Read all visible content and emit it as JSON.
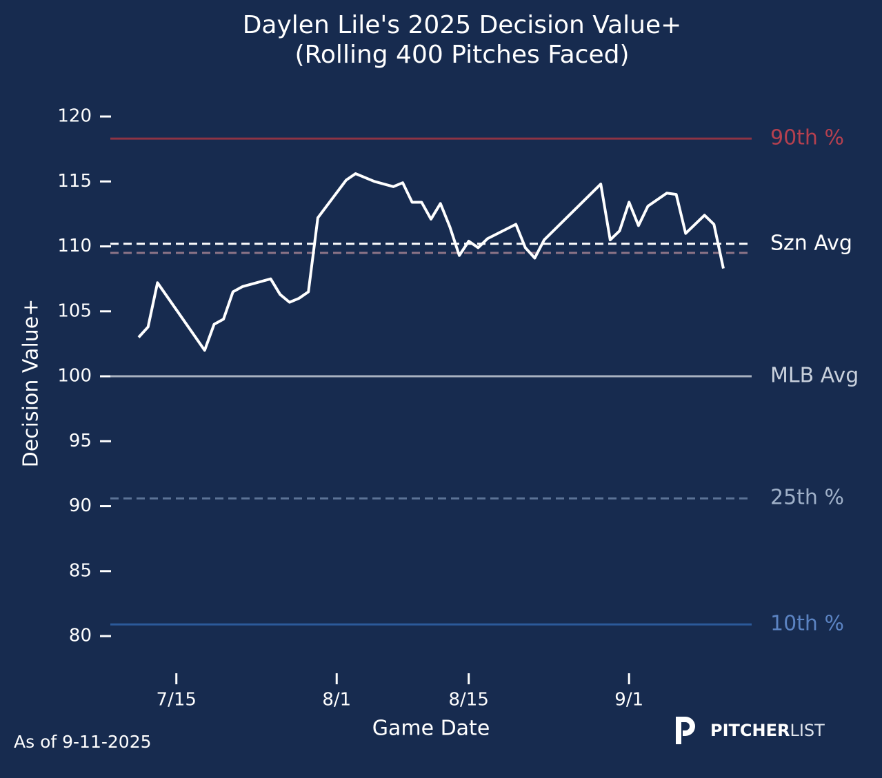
{
  "chart_data": {
    "type": "line",
    "title": "Daylen Lile's 2025 Decision Value+",
    "subtitle": "(Rolling 400 Pitches Faced)",
    "x_label": "Game Date",
    "y_label": "Decision Value+",
    "x": [
      "7/11",
      "7/12",
      "7/13",
      "7/18",
      "7/19",
      "7/20",
      "7/21",
      "7/22",
      "7/25",
      "7/26",
      "7/27",
      "7/28",
      "7/29",
      "7/30",
      "8/2",
      "8/3",
      "8/5",
      "8/7",
      "8/8",
      "8/9",
      "8/10",
      "8/11",
      "8/12",
      "8/13",
      "8/14",
      "8/15",
      "8/16",
      "8/17",
      "8/20",
      "8/21",
      "8/22",
      "8/23",
      "8/29",
      "8/30",
      "8/31",
      "9/1",
      "9/2",
      "9/3",
      "9/5",
      "9/6",
      "9/7",
      "9/9",
      "9/10",
      "9/11"
    ],
    "series": [
      {
        "color": "#ffffff",
        "values": [
          103.0,
          103.8,
          107.2,
          102.0,
          104.0,
          104.4,
          106.5,
          106.9,
          107.5,
          106.3,
          105.7,
          106.0,
          106.5,
          112.2,
          115.1,
          115.6,
          115.0,
          114.6,
          114.9,
          113.4,
          113.4,
          112.1,
          113.3,
          111.5,
          109.3,
          110.4,
          109.9,
          110.6,
          111.7,
          109.9,
          109.1,
          110.5,
          114.8,
          110.5,
          111.2,
          113.4,
          111.6,
          113.1,
          114.1,
          114.0,
          111.0,
          112.4,
          111.7,
          108.3
        ]
      }
    ],
    "xlim": [
      "7/8",
      "9/14"
    ],
    "xticks": [
      "7/15",
      "8/1",
      "8/15",
      "9/1"
    ],
    "ylim": [
      77,
      123
    ],
    "yticks": [
      80,
      85,
      90,
      95,
      100,
      105,
      110,
      115,
      120
    ],
    "reference_lines": [
      {
        "label": "90th %",
        "value": 118.3,
        "color": "#8e3444",
        "label_color": "#b5404f",
        "style": "solid"
      },
      {
        "label": "Szn Avg",
        "value": 110.2,
        "color": "#ffffff",
        "label_color": "#ffffff",
        "style": "dashed"
      },
      {
        "value": 109.5,
        "color": "#8d7487",
        "style": "dashed"
      },
      {
        "label": "MLB Avg",
        "value": 100,
        "color": "#a9b2c0",
        "label_color": "#c8d0dc",
        "style": "solid"
      },
      {
        "label": "25th %",
        "value": 90.6,
        "color": "#5c7396",
        "label_color": "#9fb0c8",
        "style": "dashed"
      },
      {
        "label": "10th %",
        "value": 80.9,
        "color": "#2c5a9a",
        "label_color": "#5b83c2",
        "style": "solid"
      }
    ],
    "footnote": "As of 9-11-2025",
    "brand": {
      "bold": "PITCHER",
      "light": "LIST"
    }
  }
}
